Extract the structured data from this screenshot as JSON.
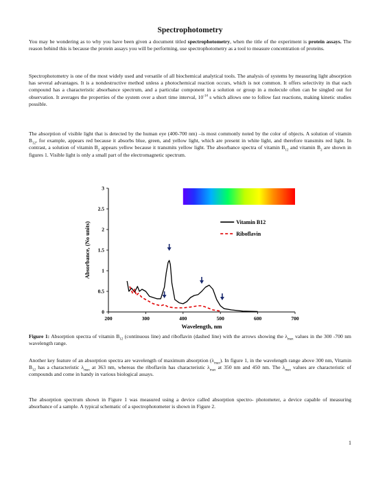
{
  "title": "Spectrophotometry",
  "para1": {
    "a": "You may be wondering as to why you have been given a document titled ",
    "b": "spectrophotometry",
    "c": ", when the title of the experiment is ",
    "d": "protein assays.",
    "e": " The reason behind this is because the protein assays you will be performing, use spectrophotometry as a tool to measure concentration of proteins."
  },
  "para2": {
    "a": "Spectrophotometry is one of the most widely used and versatile of all biochemical analytical tools. The analysis of systems by measuring light absorption has several advantages. It is a nondestructive method unless a photochemical reaction occurs, which is not common. It offers selectivity in that each compound has a characteristic absorbance spectrum, and a particular component in a solution or group in a molecule often can be singled out for observation. It averages the properties of the system over a short time interval, 10",
    "sup": "-14",
    "b": " s which allows one to follow fast reactions, making kinetic studies possible."
  },
  "para3": {
    "a": "The absorption of visible light that is detected by the human eye (400-700 nm) –is most commonly noted by the color of objects. A solution of vitamin B",
    "s1": "12",
    "b": ", for example, appears red because it absorbs blue, green, and yellow light, which are present in white light, and therefore transmits red light. In contrast, a solution of vitamin B",
    "s2": "2",
    "c": " appears yellow because it transmits yellow light. The absorbance spectra of vitamin B",
    "s3": "12",
    "d": " and vitamin B",
    "s4": "2",
    "e": " are shown in figures 1. Visible light is only a small part of the electromagnetic spectrum."
  },
  "caption": {
    "label": "Figure 1:",
    "a": " Absorption spectra of vitamin B",
    "s1": "12",
    "b": " (continuous line) and riboflavin (dashed line) with the arrows showing the λ",
    "s2": "max",
    "c": " values in the 300 -700 nm wavelength range."
  },
  "para4": {
    "a": "Another key feature of an absorption spectra are wavelength of maximum absorption (λ",
    "s1": "max",
    "b": "). In figure 1, in the wavelength range above 300 nm, Vitamin B",
    "s2": "12",
    "c": " has a characteristic λ",
    "s3": "max",
    "d": " at 363 nm, whereas the riboflavin has characteristic λ",
    "s4": "max",
    "e": " at 350 nm and 450 nm. The λ",
    "s5": "max",
    "f": " values are characteristic of compounds and come in handy in various biological assays."
  },
  "para5": "The absorption spectrum shown in Figure 1 was measured using a device called absorption spectro- photometer, a device capable of measuring absorbance of a sample. A typical schematic of a spectrophotometer is shown in Figure 2.",
  "page_number": "1",
  "chart_data": {
    "type": "line",
    "xlabel": "Wavelength, nm",
    "ylabel": "Absorbance, (No units)",
    "xlim": [
      200,
      700
    ],
    "ylim": [
      0,
      3
    ],
    "x_ticks": [
      "200",
      "300",
      "400",
      "500",
      "600",
      "700"
    ],
    "y_ticks": [
      "0",
      "0.5",
      "1",
      "1.5",
      "2",
      "2.5",
      "3"
    ],
    "legend_position": "top-right",
    "grid": false,
    "visible_spectrum_band": [
      400,
      700
    ],
    "series": [
      {
        "name": "Vitamin B12",
        "style": "solid",
        "color": "#000000",
        "points": [
          [
            250,
            0.75
          ],
          [
            255,
            0.5
          ],
          [
            262,
            0.58
          ],
          [
            270,
            0.48
          ],
          [
            278,
            0.62
          ],
          [
            283,
            0.5
          ],
          [
            290,
            0.55
          ],
          [
            300,
            0.5
          ],
          [
            310,
            0.38
          ],
          [
            320,
            0.35
          ],
          [
            330,
            0.32
          ],
          [
            340,
            0.32
          ],
          [
            350,
            0.6
          ],
          [
            355,
            0.95
          ],
          [
            360,
            1.2
          ],
          [
            363,
            1.25
          ],
          [
            366,
            1.15
          ],
          [
            370,
            0.7
          ],
          [
            378,
            0.3
          ],
          [
            390,
            0.22
          ],
          [
            400,
            0.2
          ],
          [
            410,
            0.25
          ],
          [
            420,
            0.35
          ],
          [
            430,
            0.4
          ],
          [
            440,
            0.42
          ],
          [
            450,
            0.5
          ],
          [
            460,
            0.6
          ],
          [
            470,
            0.65
          ],
          [
            480,
            0.55
          ],
          [
            490,
            0.3
          ],
          [
            500,
            0.15
          ],
          [
            510,
            0.08
          ],
          [
            530,
            0.05
          ],
          [
            560,
            0.02
          ],
          [
            600,
            0.01
          ]
        ]
      },
      {
        "name": "Riboflavin",
        "style": "dashed",
        "color": "#e00000",
        "points": [
          [
            257,
            0.62
          ],
          [
            265,
            0.45
          ],
          [
            270,
            0.55
          ],
          [
            275,
            0.4
          ],
          [
            280,
            0.45
          ],
          [
            290,
            0.35
          ],
          [
            300,
            0.3
          ],
          [
            320,
            0.2
          ],
          [
            340,
            0.15
          ],
          [
            350,
            0.18
          ],
          [
            360,
            0.12
          ],
          [
            380,
            0.1
          ],
          [
            400,
            0.1
          ],
          [
            420,
            0.12
          ],
          [
            440,
            0.15
          ],
          [
            450,
            0.15
          ],
          [
            460,
            0.12
          ],
          [
            480,
            0.05
          ],
          [
            500,
            0.02
          ]
        ]
      }
    ],
    "arrows": [
      {
        "x": 363,
        "y": 1.5
      },
      {
        "x": 450,
        "y": 0.7
      },
      {
        "x": 350,
        "y": 0.35
      },
      {
        "x": 505,
        "y": 0.3
      }
    ]
  }
}
